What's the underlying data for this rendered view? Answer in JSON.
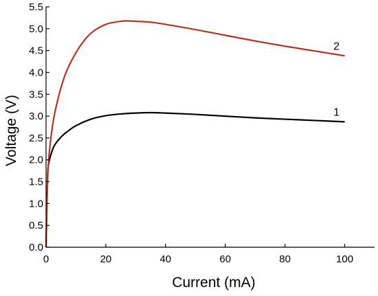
{
  "chart_data": {
    "type": "line",
    "title": "",
    "xlabel": "Current (mA)",
    "ylabel": "Voltage (V)",
    "xlim": [
      0,
      110
    ],
    "ylim": [
      0,
      5.5
    ],
    "xticks": [
      0,
      20,
      40,
      60,
      80,
      100
    ],
    "xtick_labels": [
      "0",
      "20",
      "40",
      "60",
      "80",
      "100"
    ],
    "yticks": [
      0,
      0.5,
      1,
      1.5,
      2,
      2.5,
      3,
      3.5,
      4,
      4.5,
      5,
      5.5
    ],
    "ytick_labels": [
      "0.0",
      "0.5",
      "1.0",
      "1.5",
      "2.0",
      "2.5",
      "3.0",
      "3.5",
      "4.0",
      "4.5",
      "5.0",
      "5.5"
    ],
    "grid": false,
    "legend": "none",
    "series": [
      {
        "name": "1",
        "color": "#000000",
        "x": [
          0,
          0.5,
          1,
          2,
          3,
          5,
          7,
          10,
          15,
          20,
          25,
          30,
          35,
          40,
          50,
          60,
          70,
          80,
          90,
          100
        ],
        "y": [
          0,
          1.6,
          1.95,
          2.2,
          2.35,
          2.52,
          2.64,
          2.78,
          2.93,
          3.01,
          3.05,
          3.07,
          3.08,
          3.07,
          3.04,
          3.0,
          2.96,
          2.93,
          2.9,
          2.87
        ]
      },
      {
        "name": "2",
        "color": "#b5361f",
        "x": [
          0,
          0.5,
          1,
          2,
          3,
          5,
          7,
          10,
          13,
          16,
          20,
          23,
          25,
          27,
          30,
          35,
          40,
          50,
          60,
          70,
          80,
          90,
          100
        ],
        "y": [
          0,
          1.5,
          2.1,
          2.7,
          3.1,
          3.65,
          4.05,
          4.45,
          4.75,
          4.95,
          5.1,
          5.15,
          5.17,
          5.18,
          5.17,
          5.15,
          5.1,
          4.98,
          4.85,
          4.72,
          4.6,
          4.49,
          4.38
        ]
      }
    ]
  }
}
